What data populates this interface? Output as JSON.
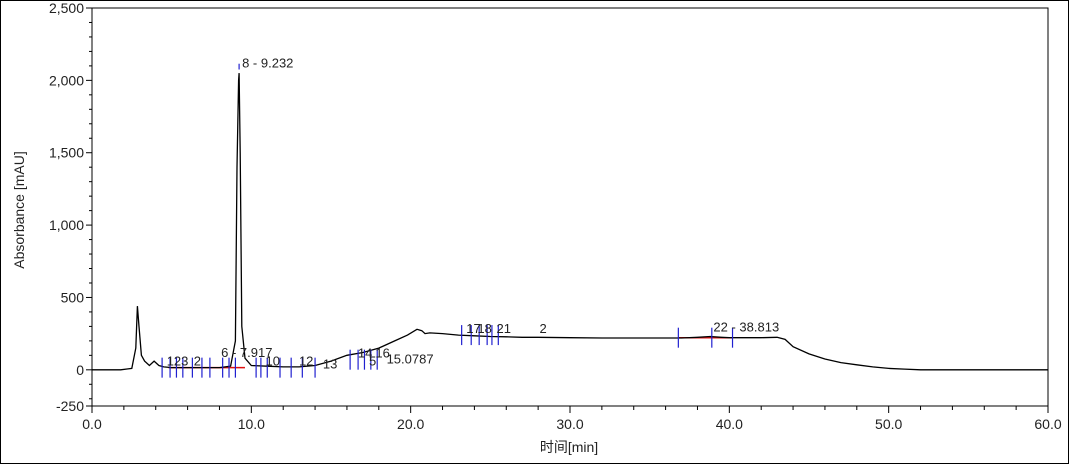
{
  "chart_data": {
    "type": "line",
    "xlabel_cn": "时间",
    "xlabel_unit": "[min]",
    "ylabel": "Absorbance [mAU]",
    "xlim": [
      0,
      60
    ],
    "ylim": [
      -250,
      2500
    ],
    "x_ticks": [
      0,
      10,
      20,
      30,
      40,
      50,
      60
    ],
    "x_tick_labels": [
      "0.0",
      "10.0",
      "20.0",
      "30.0",
      "40.0",
      "50.0",
      "60.0"
    ],
    "y_ticks": [
      -250,
      0,
      500,
      1000,
      1500,
      2000,
      2500
    ],
    "y_tick_labels": [
      "-250",
      "0",
      "500",
      "1,000",
      "1,500",
      "2,000",
      "2,500"
    ],
    "grid": false,
    "series": [
      {
        "x": [
          0,
          1.8,
          2.5,
          2.75,
          2.85,
          2.95,
          3.1,
          3.3,
          3.6,
          3.9,
          4.2,
          4.5,
          5,
          6,
          7,
          8,
          8.7,
          9.0,
          9.1,
          9.2,
          9.232,
          9.3,
          9.4,
          9.6,
          10,
          11,
          12,
          13,
          14,
          15,
          16,
          17,
          18,
          19,
          19.8,
          20.4,
          20.7,
          20.9,
          21.2,
          22,
          23,
          24,
          25,
          26,
          27,
          28,
          30,
          32,
          34,
          36,
          37,
          38,
          38.8,
          39.5,
          40,
          42,
          43,
          43.5,
          44,
          45,
          46,
          47,
          48,
          49,
          50,
          51,
          52,
          52.5,
          53,
          55,
          58,
          60
        ],
        "y": [
          0,
          0,
          10,
          150,
          440,
          300,
          100,
          60,
          30,
          60,
          30,
          20,
          15,
          15,
          15,
          15,
          25,
          200,
          1400,
          2000,
          2050,
          1500,
          300,
          80,
          30,
          25,
          20,
          20,
          30,
          60,
          100,
          120,
          150,
          200,
          240,
          280,
          270,
          250,
          255,
          250,
          240,
          235,
          230,
          228,
          225,
          225,
          222,
          220,
          220,
          220,
          220,
          225,
          230,
          225,
          222,
          222,
          225,
          210,
          160,
          110,
          75,
          50,
          35,
          20,
          10,
          5,
          0,
          0,
          0,
          0,
          0,
          0
        ]
      }
    ],
    "annotations": [
      {
        "text": "8 - 9.232",
        "x": 9.232,
        "y": 2090
      },
      {
        "text": "22 - 38.813",
        "x": 38.813,
        "y": 265
      },
      {
        "text": "6 - 7.917",
        "x": 7.917,
        "y": 90
      },
      {
        "text": "14",
        "x": 16.5,
        "y": 85
      },
      {
        "text": "16",
        "x": 17.6,
        "y": 85
      },
      {
        "text": "15.0787",
        "x": 18.3,
        "y": 45
      },
      {
        "text": "17",
        "x": 23.3,
        "y": 255
      },
      {
        "text": "18",
        "x": 24.0,
        "y": 255
      },
      {
        "text": "123",
        "x": 4.5,
        "y": 30
      },
      {
        "text": "2",
        "x": 6.2,
        "y": 30
      },
      {
        "text": "10",
        "x": 10.7,
        "y": 30
      },
      {
        "text": "12",
        "x": 12.8,
        "y": 30
      },
      {
        "text": "13",
        "x": 14.3,
        "y": 10
      },
      {
        "text": "5",
        "x": 17.2,
        "y": 30
      },
      {
        "text": "21",
        "x": 25.2,
        "y": 255
      },
      {
        "text": "2",
        "x": 27.9,
        "y": 255
      }
    ]
  }
}
